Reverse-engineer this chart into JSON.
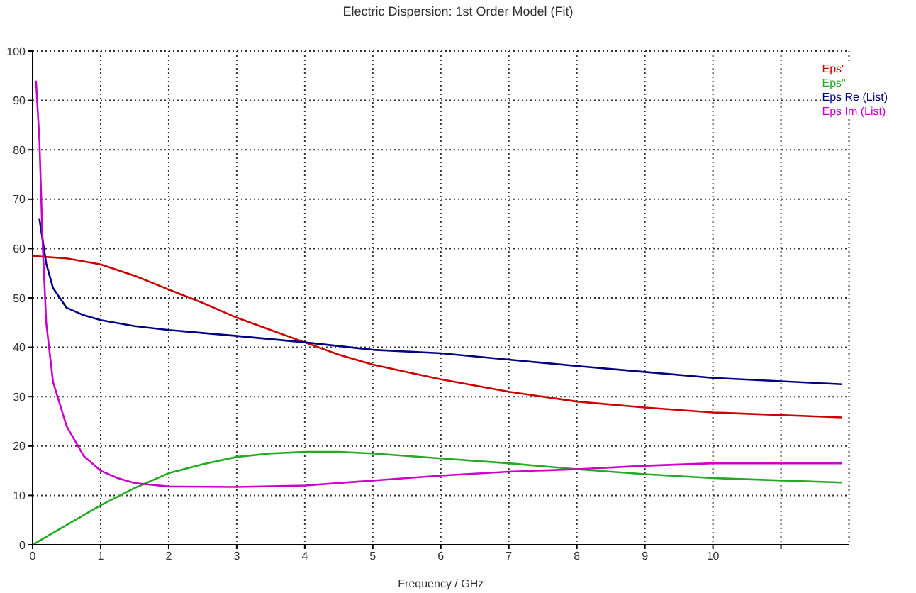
{
  "chart_data": {
    "type": "line",
    "title": "Electric Dispersion: 1st Order Model (Fit)",
    "xlabel": "Frequency / GHz",
    "xlim": [
      0,
      12
    ],
    "xticks": [
      0,
      1,
      2,
      3,
      4,
      5,
      6,
      7,
      8,
      9,
      10,
      {
        "value": 11,
        "label": null
      }
    ],
    "ylim": [
      0,
      100
    ],
    "yticks": [
      0,
      10,
      20,
      30,
      40,
      50,
      60,
      70,
      80,
      90,
      100
    ],
    "grid": true,
    "legend": "top right",
    "marker": "none",
    "line_style": "solid",
    "series": [
      {
        "name": "Eps'",
        "color": "#cc0000",
        "x": [
          0,
          0.5,
          1,
          1.5,
          2,
          2.5,
          3,
          3.5,
          4,
          4.5,
          5,
          5.5,
          6,
          7,
          8,
          9,
          10,
          11.9
        ],
        "values": [
          58.5,
          58,
          56.8,
          54.5,
          51.7,
          49,
          46,
          43.5,
          41,
          38.5,
          36.5,
          35,
          33.5,
          31,
          29,
          27.8,
          26.8,
          25.8
        ]
      },
      {
        "name": "Eps\"",
        "color": "#22aa22",
        "x": [
          0,
          0.5,
          1,
          1.5,
          2,
          2.5,
          3,
          3.5,
          4,
          4.5,
          5,
          6,
          7,
          8,
          9,
          10,
          11.9
        ],
        "values": [
          0,
          4,
          8,
          11.5,
          14.5,
          16.3,
          17.8,
          18.5,
          18.8,
          18.8,
          18.5,
          17.5,
          16.5,
          15.3,
          14.3,
          13.5,
          12.6
        ]
      },
      {
        "name": "Eps Re (List)",
        "color": "#000080",
        "x": [
          0.1,
          0.2,
          0.3,
          0.5,
          0.75,
          1,
          1.5,
          2,
          3,
          4,
          5,
          6,
          7,
          8,
          9,
          10,
          11.9
        ],
        "values": [
          66,
          57,
          52,
          48,
          46.5,
          45.5,
          44.3,
          43.5,
          42.3,
          41,
          39.5,
          38.8,
          37.5,
          36.2,
          35,
          33.8,
          32.5
        ]
      },
      {
        "name": "Eps Im (List)",
        "color": "#cc00cc",
        "x": [
          0.05,
          0.1,
          0.15,
          0.2,
          0.3,
          0.5,
          0.75,
          1,
          1.25,
          1.5,
          2,
          3,
          4,
          5,
          6,
          7,
          8,
          9,
          10,
          11.9
        ],
        "values": [
          94,
          82,
          60,
          45,
          33,
          24,
          18,
          15,
          13.5,
          12.5,
          11.8,
          11.7,
          12,
          13,
          14,
          14.8,
          15.3,
          16,
          16.5,
          16.5
        ]
      }
    ]
  }
}
